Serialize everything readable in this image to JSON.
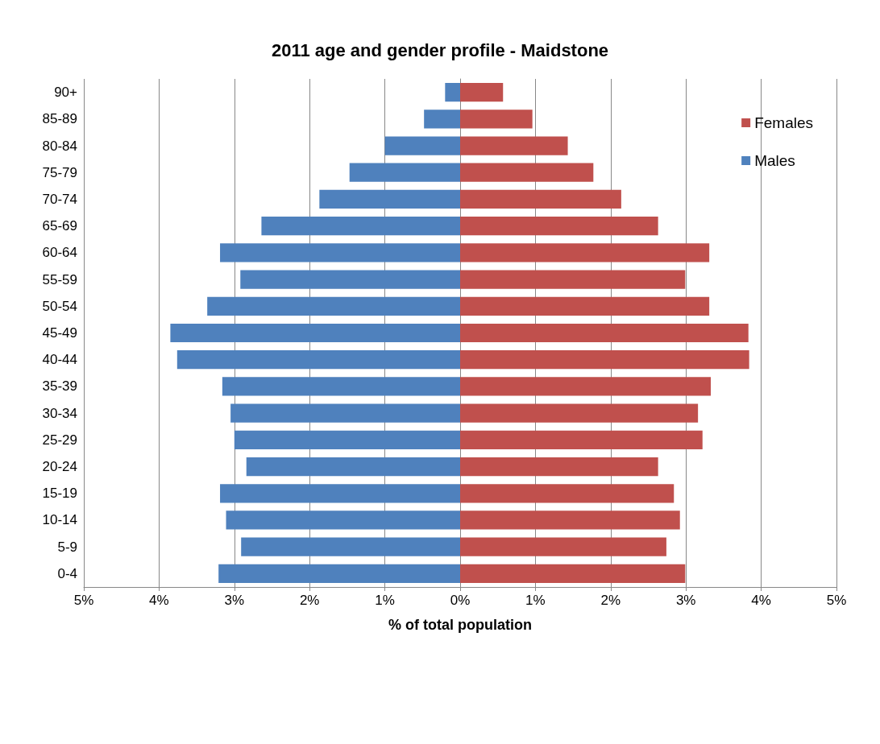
{
  "chart_data": {
    "type": "bar",
    "orientation": "horizontal",
    "title": "2011 age and gender profile - Maidstone",
    "xlabel": "% of total population",
    "categories": [
      "90+",
      "85-89",
      "80-84",
      "75-79",
      "70-74",
      "65-69",
      "60-64",
      "55-59",
      "50-54",
      "45-49",
      "40-44",
      "35-39",
      "30-34",
      "25-29",
      "20-24",
      "15-19",
      "10-14",
      "5-9",
      "0-4"
    ],
    "series": [
      {
        "name": "Females",
        "color": "#c0504d",
        "values": [
          0.57,
          0.96,
          1.43,
          1.77,
          2.14,
          2.63,
          3.31,
          2.99,
          3.31,
          3.83,
          3.84,
          3.33,
          3.16,
          3.22,
          2.63,
          2.84,
          2.92,
          2.74,
          2.99
        ]
      },
      {
        "name": "Males",
        "color": "#4f81bd",
        "values": [
          -0.2,
          -0.48,
          -1.0,
          -1.47,
          -1.87,
          -2.64,
          -3.19,
          -2.92,
          -3.36,
          -3.85,
          -3.76,
          -3.16,
          -3.05,
          -3.0,
          -2.84,
          -3.19,
          -3.11,
          -2.91,
          -3.21
        ]
      }
    ],
    "xlim": [
      -5,
      5
    ],
    "xticks": [
      {
        "value": -5,
        "label": "5%"
      },
      {
        "value": -4,
        "label": "4%"
      },
      {
        "value": -3,
        "label": "3%"
      },
      {
        "value": -2,
        "label": "2%"
      },
      {
        "value": -1,
        "label": "1%"
      },
      {
        "value": 0,
        "label": "0%"
      },
      {
        "value": 1,
        "label": "1%"
      },
      {
        "value": 2,
        "label": "2%"
      },
      {
        "value": 3,
        "label": "3%"
      },
      {
        "value": 4,
        "label": "4%"
      },
      {
        "value": 5,
        "label": "5%"
      }
    ],
    "grid": "x",
    "legend": "top right",
    "stacked": true
  }
}
